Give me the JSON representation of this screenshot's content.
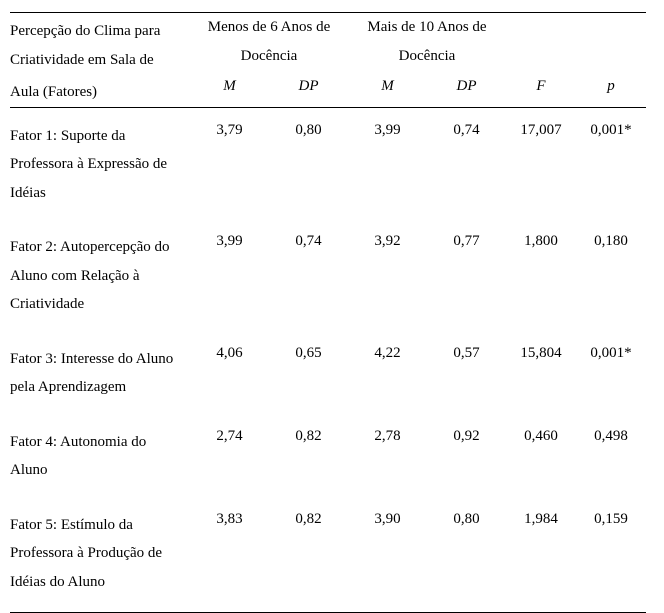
{
  "header": {
    "factor_label_line1": "Percepção do Clima para",
    "factor_label_line2": "Criatividade em Sala de",
    "factor_label_line3": "Aula (Fatores)",
    "group1_line1": "Menos de 6 Anos de",
    "group1_line2": "Docência",
    "group2_line1": "Mais de 10 Anos de",
    "group2_line2": "Docência",
    "sub": {
      "m1": "M",
      "dp1": "DP",
      "m2": "M",
      "dp2": "DP",
      "f": "F",
      "p": "p"
    }
  },
  "rows": [
    {
      "label": "Fator 1: Suporte da Professora à Expressão de Idéias",
      "m1": "3,79",
      "dp1": "0,80",
      "m2": "3,99",
      "dp2": "0,74",
      "f": "17,007",
      "p": "0,001*"
    },
    {
      "label": "Fator 2: Autopercepção do Aluno com Relação à Criatividade",
      "m1": "3,99",
      "dp1": "0,74",
      "m2": "3,92",
      "dp2": "0,77",
      "f": "1,800",
      "p": "0,180"
    },
    {
      "label": "Fator 3: Interesse do Aluno pela Aprendizagem",
      "m1": "4,06",
      "dp1": "0,65",
      "m2": "4,22",
      "dp2": "0,57",
      "f": "15,804",
      "p": "0,001*"
    },
    {
      "label": "Fator 4: Autonomia do Aluno",
      "m1": "2,74",
      "dp1": "0,82",
      "m2": "2,78",
      "dp2": "0,92",
      "f": "0,460",
      "p": "0,498"
    },
    {
      "label": "Fator 5: Estímulo da Professora à Produção de Idéias do Aluno",
      "m1": "3,83",
      "dp1": "0,82",
      "m2": "3,90",
      "dp2": "0,80",
      "f": "1,984",
      "p": "0,159"
    }
  ],
  "style": {
    "font_family": "Times New Roman",
    "font_size_body": 15,
    "line_height": 1.9,
    "text_color": "#000000",
    "bg_color": "#ffffff",
    "border_color": "#000000",
    "border_width": 1
  }
}
